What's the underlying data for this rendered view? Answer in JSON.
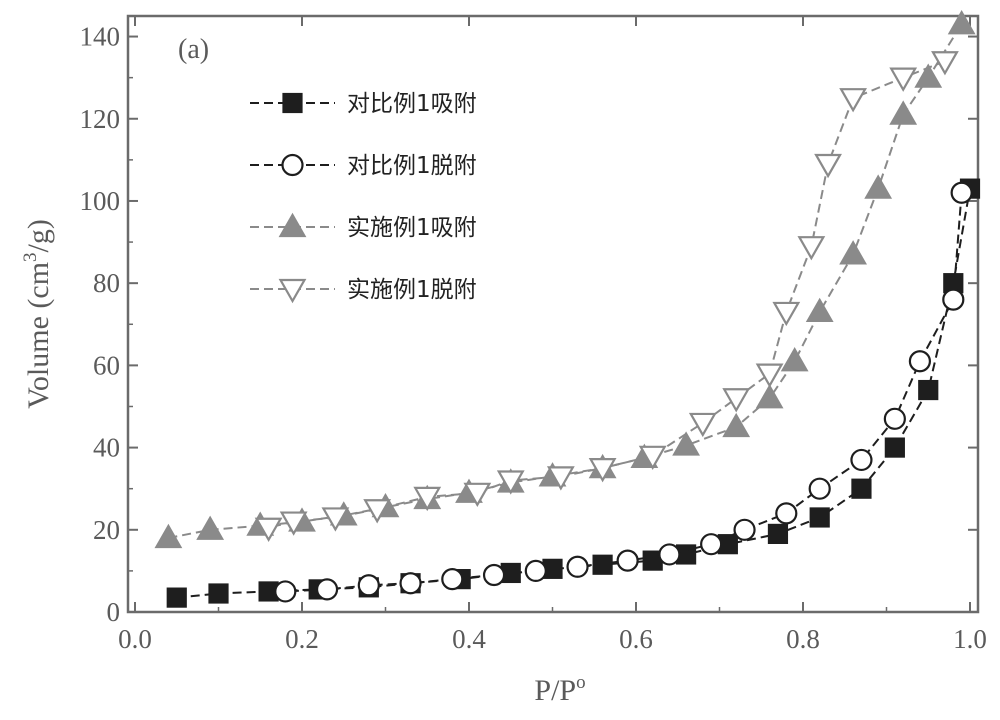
{
  "colors": {
    "axis": "#6b6b6b",
    "text": "#5a5a5a",
    "series_black": "#1e1e1e",
    "series_gray": "#8a8a8a",
    "hollow_fill": "#ffffff"
  },
  "panel_label": "(a)",
  "chart_data": {
    "type": "line",
    "title": "",
    "xlabel": "P/P",
    "xlabel_sup": "o",
    "ylabel": "Volume (cm",
    "ylabel_sup": "3",
    "ylabel_tail": "/g)",
    "xlim": [
      0.0,
      1.0
    ],
    "ylim": [
      0,
      145
    ],
    "xticks": [
      0.0,
      0.2,
      0.4,
      0.6,
      0.8,
      1.0
    ],
    "xtick_labels": [
      "0.0",
      "0.2",
      "0.4",
      "0.6",
      "0.8",
      "1.0"
    ],
    "yticks": [
      0,
      20,
      40,
      60,
      80,
      100,
      120,
      140
    ],
    "ytick_labels": [
      "0",
      "20",
      "40",
      "60",
      "80",
      "100",
      "120",
      "140"
    ],
    "grid": false,
    "legend_position": "top-left",
    "series": [
      {
        "name": "对比例1吸附",
        "marker": "square",
        "filled": true,
        "color_key": "series_black",
        "x": [
          0.05,
          0.1,
          0.16,
          0.22,
          0.28,
          0.33,
          0.39,
          0.45,
          0.5,
          0.56,
          0.62,
          0.66,
          0.71,
          0.77,
          0.82,
          0.87,
          0.91,
          0.95,
          0.98,
          1.0
        ],
        "y": [
          3.5,
          4.5,
          5.0,
          5.5,
          6.0,
          7.0,
          8.0,
          9.5,
          10.5,
          11.5,
          12.5,
          14.0,
          16.5,
          19.0,
          23.0,
          30.0,
          40.0,
          54.0,
          80.0,
          103.0
        ]
      },
      {
        "name": "对比例1脱附",
        "marker": "circle",
        "filled": false,
        "color_key": "series_black",
        "x": [
          0.99,
          0.98,
          0.94,
          0.91,
          0.87,
          0.82,
          0.78,
          0.73,
          0.69,
          0.64,
          0.59,
          0.53,
          0.48,
          0.43,
          0.38,
          0.33,
          0.28,
          0.23,
          0.18
        ],
        "y": [
          102.0,
          76.0,
          61.0,
          47.0,
          37.0,
          30.0,
          24.0,
          20.0,
          16.5,
          14.0,
          12.5,
          11.0,
          10.0,
          9.0,
          8.0,
          7.0,
          6.5,
          5.5,
          5.0
        ]
      },
      {
        "name": "实施例1吸附",
        "marker": "triangle-up",
        "filled": true,
        "color_key": "series_gray",
        "x": [
          0.04,
          0.09,
          0.15,
          0.2,
          0.25,
          0.3,
          0.35,
          0.4,
          0.45,
          0.5,
          0.56,
          0.61,
          0.66,
          0.72,
          0.76,
          0.79,
          0.82,
          0.86,
          0.89,
          0.92,
          0.95,
          0.99
        ],
        "y": [
          18.0,
          20.0,
          21.0,
          22.0,
          23.5,
          25.5,
          27.5,
          29.0,
          31.5,
          33.0,
          35.0,
          37.5,
          40.5,
          45.0,
          52.0,
          61.0,
          73.0,
          87.0,
          103.0,
          121.0,
          130.0,
          143.0
        ]
      },
      {
        "name": "实施例1脱附",
        "marker": "triangle-down",
        "filled": false,
        "color_key": "series_gray",
        "x": [
          0.97,
          0.92,
          0.86,
          0.83,
          0.81,
          0.78,
          0.76,
          0.72,
          0.68,
          0.62,
          0.56,
          0.51,
          0.45,
          0.41,
          0.35,
          0.29,
          0.24,
          0.19,
          0.16
        ],
        "y": [
          134.0,
          130.0,
          125.0,
          109.0,
          89.0,
          73.0,
          58.0,
          52.0,
          46.0,
          38.0,
          35.0,
          33.0,
          32.0,
          29.0,
          28.0,
          25.0,
          23.0,
          22.0,
          20.5
        ]
      }
    ]
  }
}
